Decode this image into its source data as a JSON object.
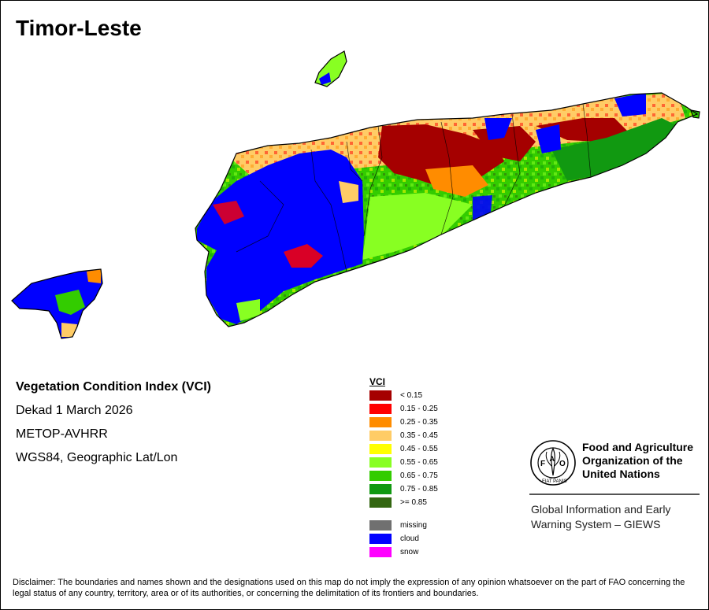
{
  "map": {
    "title": "Timor-Leste"
  },
  "info": {
    "index_name": "Vegetation Condition Index (VCI)",
    "period": "Dekad 1 March 2026",
    "sensor": "METOP-AVHRR",
    "projection": "WGS84, Geographic Lat/Lon"
  },
  "legend": {
    "title": "VCI",
    "classes": [
      {
        "label": "< 0.15",
        "color": "#a50000"
      },
      {
        "label": "0.15 - 0.25",
        "color": "#ff0000"
      },
      {
        "label": "0.25 - 0.35",
        "color": "#ff8c00"
      },
      {
        "label": "0.35 - 0.45",
        "color": "#ffcc66"
      },
      {
        "label": "0.45 - 0.55",
        "color": "#ffff00"
      },
      {
        "label": "0.55 - 0.65",
        "color": "#88ff22"
      },
      {
        "label": "0.65 - 0.75",
        "color": "#33cc00"
      },
      {
        "label": "0.75 - 0.85",
        "color": "#119911"
      },
      {
        "label": ">= 0.85",
        "color": "#336611"
      }
    ],
    "special": [
      {
        "label": "missing",
        "color": "#707070"
      },
      {
        "label": "cloud",
        "color": "#0000ff"
      },
      {
        "label": "snow",
        "color": "#ff00ff"
      }
    ]
  },
  "organization": {
    "name": "Food and Agriculture\nOrganization of the\nUnited Nations",
    "logo_letters": "FAO",
    "logo_ring_text": "FIAT PANIS",
    "system": "Global Information and Early\nWarning System – GIEWS"
  },
  "disclaimer": "Disclaimer: The boundaries and names shown and the designations used on this map do not imply the expression of any opinion whatsoever on the part of FAO concerning the legal status of any country, territory, area or of its authorities, or concerning the delimitation of its frontiers and boundaries."
}
